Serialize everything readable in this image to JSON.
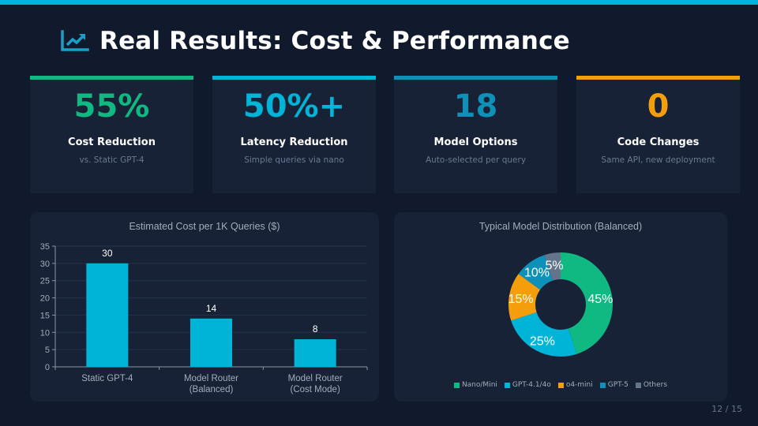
{
  "header": {
    "title": "Real Results: Cost & Performance",
    "icon": "chart-line-icon",
    "accent_color": "#00b4d8"
  },
  "cards": [
    {
      "value": "55%",
      "label": "Cost Reduction",
      "sub": "vs. Static GPT-4",
      "color": "#10b981"
    },
    {
      "value": "50%+",
      "label": "Latency Reduction",
      "sub": "Simple queries via nano",
      "color": "#00b4d8"
    },
    {
      "value": "18",
      "label": "Model Options",
      "sub": "Auto-selected per query",
      "color": "#0e91b8"
    },
    {
      "value": "0",
      "label": "Code Changes",
      "sub": "Same API, new deployment",
      "color": "#f59e0b"
    }
  ],
  "chart_data": [
    {
      "type": "bar",
      "title": "Estimated Cost per 1K Queries ($)",
      "categories": [
        "Static GPT-4",
        "Model Router (Balanced)",
        "Model Router (Cost Mode)"
      ],
      "category_lines": [
        [
          "Static GPT-4"
        ],
        [
          "Model Router",
          "(Balanced)"
        ],
        [
          "Model Router",
          "(Cost Mode)"
        ]
      ],
      "values": [
        30,
        14,
        8
      ],
      "value_labels": [
        "30",
        "14",
        "8"
      ],
      "ylim": [
        0,
        35
      ],
      "yticks": [
        0,
        5,
        10,
        15,
        20,
        25,
        30,
        35
      ],
      "grid": true,
      "color": "#00b4d8",
      "xlabel": "",
      "ylabel": ""
    },
    {
      "type": "pie",
      "style": "doughnut",
      "title": "Typical Model Distribution (Balanced)",
      "labels": [
        "Nano/Mini",
        "GPT-4.1/4o",
        "o4-mini",
        "GPT-5",
        "Others"
      ],
      "values": [
        45,
        25,
        15,
        10,
        5
      ],
      "value_labels": [
        "45%",
        "25%",
        "15%",
        "10%",
        "5%"
      ],
      "colors": [
        "#10b981",
        "#00b4d8",
        "#f59e0b",
        "#0e91b8",
        "#64748b"
      ],
      "legend": "bottom"
    }
  ],
  "footer": {
    "page": "12 / 15"
  }
}
